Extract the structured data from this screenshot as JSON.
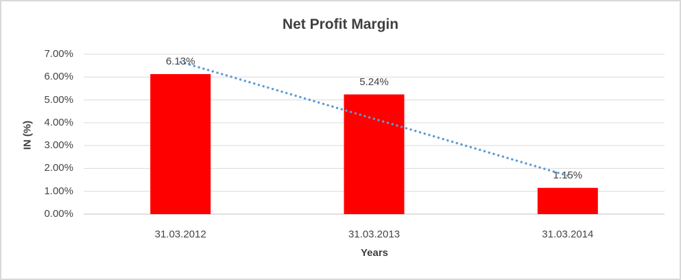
{
  "chart_data": {
    "type": "bar",
    "title": "Net Profit Margin",
    "xlabel": "Years",
    "ylabel": "IN (%)",
    "categories": [
      "31.03.2012",
      "31.03.2013",
      "31.03.2014"
    ],
    "values": [
      6.13,
      5.24,
      1.15
    ],
    "data_labels": [
      "6.13%",
      "5.24%",
      "1.15%"
    ],
    "yticks": [
      {
        "value": 0,
        "label": "0.00%"
      },
      {
        "value": 1,
        "label": "1.00%"
      },
      {
        "value": 2,
        "label": "2.00%"
      },
      {
        "value": 3,
        "label": "3.00%"
      },
      {
        "value": 4,
        "label": "4.00%"
      },
      {
        "value": 5,
        "label": "5.00%"
      },
      {
        "value": 6,
        "label": "6.00%"
      },
      {
        "value": 7,
        "label": "7.00%"
      }
    ],
    "ylim": [
      0,
      7
    ],
    "grid": true,
    "legend": "none",
    "bar_color": "#FF0000",
    "gridline_color": "#D9D9D9",
    "axis_line_color": "#BFBFBF",
    "text_color": "#404040",
    "trendline": {
      "type": "linear",
      "style": "dotted",
      "color": "#5B9BD5"
    }
  }
}
